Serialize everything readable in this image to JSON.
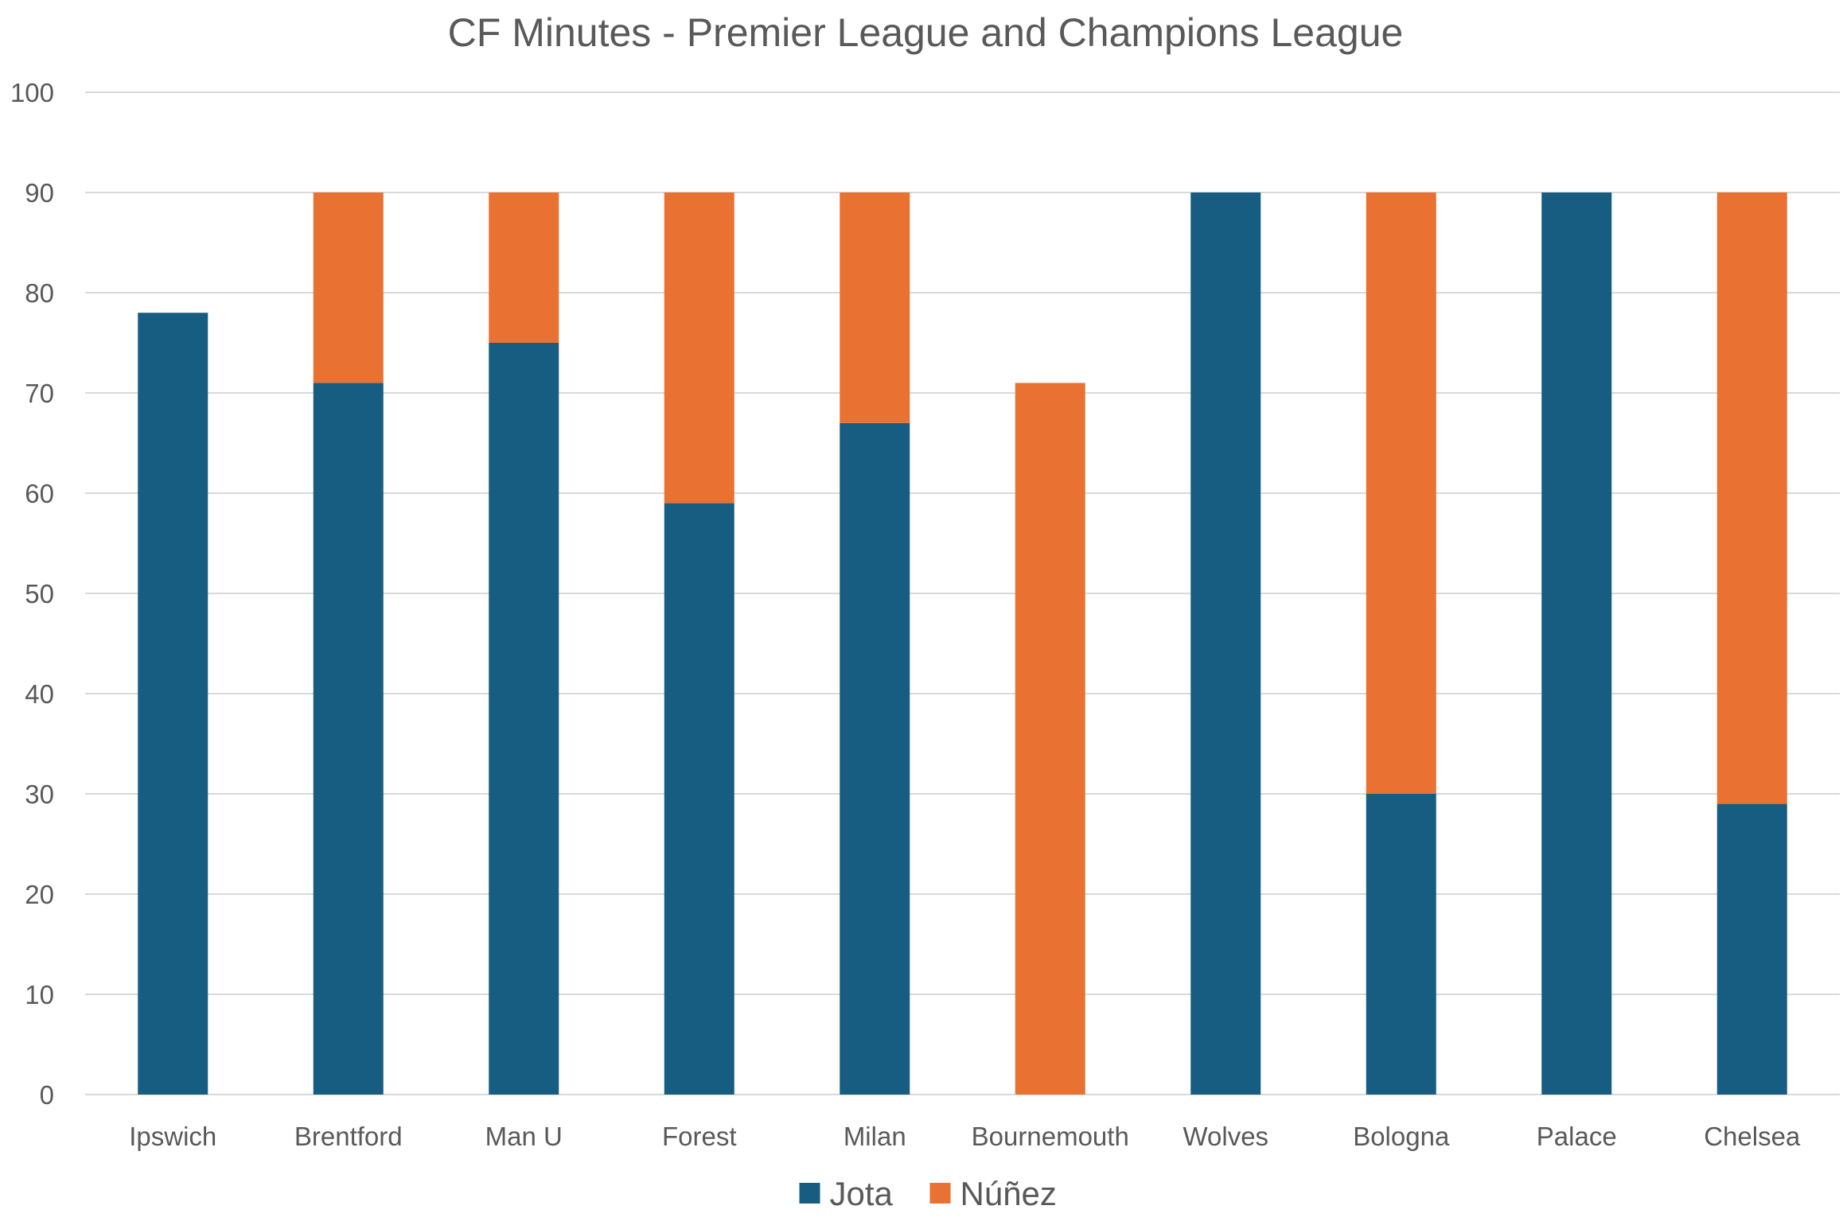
{
  "chart_data": {
    "type": "bar",
    "stacked": true,
    "title": "CF Minutes - Premier League and Champions League",
    "xlabel": "",
    "ylabel": "",
    "ylim": [
      0,
      100
    ],
    "yticks": [
      0,
      10,
      20,
      30,
      40,
      50,
      60,
      70,
      80,
      90,
      100
    ],
    "grid": true,
    "legend_position": "bottom",
    "categories": [
      "Ipswich",
      "Brentford",
      "Man U",
      "Forest",
      "Milan",
      "Bournemouth",
      "Wolves",
      "Bologna",
      "Palace",
      "Chelsea"
    ],
    "series": [
      {
        "name": "Jota",
        "color": "#175d82",
        "values": [
          78,
          71,
          75,
          59,
          67,
          0,
          90,
          30,
          90,
          29
        ]
      },
      {
        "name": "Núñez",
        "color": "#e97132",
        "values": [
          0,
          19,
          15,
          31,
          23,
          71,
          0,
          60,
          0,
          61
        ]
      }
    ]
  }
}
